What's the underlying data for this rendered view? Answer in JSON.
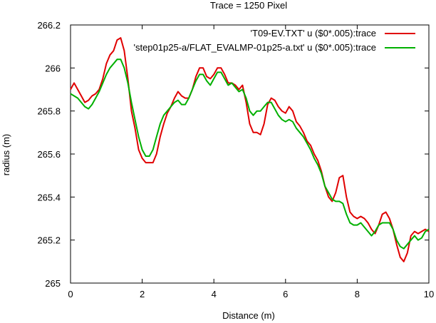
{
  "chart_data": {
    "type": "line",
    "title": "Trace = 1250 Pixel",
    "xlabel": "Distance (m)",
    "ylabel": "radius (m)",
    "xlim": [
      0,
      10
    ],
    "ylim": [
      265,
      266.2
    ],
    "x_ticks": [
      0,
      2,
      4,
      6,
      8,
      10
    ],
    "x_tick_labels": [
      "0",
      "2",
      "4",
      "6",
      "8",
      "10"
    ],
    "y_ticks": [
      265,
      265.2,
      265.4,
      265.6,
      265.8,
      266,
      266.2
    ],
    "y_tick_labels": [
      "265",
      "265.2",
      "265.4",
      "265.6",
      "265.8",
      "266",
      "266.2"
    ],
    "grid": false,
    "legend_position": "top-right",
    "series": [
      {
        "name": "'T09-EV.TXT' u ($0*.005):trace",
        "color": "#e00000",
        "x": [
          0,
          0.1,
          0.2,
          0.3,
          0.4,
          0.5,
          0.6,
          0.7,
          0.8,
          0.9,
          1.0,
          1.1,
          1.2,
          1.3,
          1.4,
          1.5,
          1.6,
          1.7,
          1.8,
          1.9,
          2.0,
          2.1,
          2.2,
          2.3,
          2.4,
          2.5,
          2.6,
          2.7,
          2.8,
          2.9,
          3.0,
          3.1,
          3.2,
          3.3,
          3.4,
          3.5,
          3.6,
          3.7,
          3.8,
          3.9,
          4.0,
          4.1,
          4.2,
          4.3,
          4.4,
          4.5,
          4.6,
          4.7,
          4.8,
          4.9,
          5.0,
          5.1,
          5.2,
          5.3,
          5.4,
          5.5,
          5.6,
          5.7,
          5.8,
          5.9,
          6.0,
          6.1,
          6.2,
          6.3,
          6.4,
          6.5,
          6.6,
          6.7,
          6.8,
          6.9,
          7.0,
          7.1,
          7.2,
          7.3,
          7.4,
          7.5,
          7.6,
          7.7,
          7.8,
          7.9,
          8.0,
          8.1,
          8.2,
          8.3,
          8.4,
          8.5,
          8.6,
          8.7,
          8.8,
          8.9,
          9.0,
          9.1,
          9.2,
          9.3,
          9.4,
          9.5,
          9.6,
          9.7,
          9.8,
          9.9,
          10.0
        ],
        "y": [
          265.9,
          265.93,
          265.9,
          265.87,
          265.84,
          265.85,
          265.87,
          265.88,
          265.9,
          265.95,
          266.02,
          266.06,
          266.08,
          266.13,
          266.14,
          266.08,
          265.95,
          265.8,
          265.72,
          265.62,
          265.58,
          265.56,
          265.56,
          265.56,
          265.6,
          265.68,
          265.74,
          265.79,
          265.82,
          265.86,
          265.89,
          265.87,
          265.86,
          265.86,
          265.9,
          265.96,
          266.0,
          266.0,
          265.96,
          265.95,
          265.97,
          266.0,
          266.0,
          265.97,
          265.93,
          265.93,
          265.92,
          265.9,
          265.92,
          265.84,
          265.74,
          265.7,
          265.7,
          265.69,
          265.74,
          265.83,
          265.86,
          265.85,
          265.82,
          265.8,
          265.79,
          265.82,
          265.8,
          265.75,
          265.73,
          265.7,
          265.66,
          265.64,
          265.6,
          265.57,
          265.52,
          265.45,
          265.4,
          265.38,
          265.42,
          265.49,
          265.5,
          265.4,
          265.33,
          265.31,
          265.3,
          265.31,
          265.3,
          265.28,
          265.25,
          265.23,
          265.27,
          265.32,
          265.33,
          265.3,
          265.25,
          265.18,
          265.12,
          265.1,
          265.14,
          265.22,
          265.24,
          265.23,
          265.24,
          265.25,
          265.24
        ]
      },
      {
        "name": "'step01p25-a/FLAT_EVALMP-01p25-a.txt' u ($0*.005):trace",
        "color": "#00b000",
        "x": [
          0,
          0.1,
          0.2,
          0.3,
          0.4,
          0.5,
          0.6,
          0.7,
          0.8,
          0.9,
          1.0,
          1.1,
          1.2,
          1.3,
          1.4,
          1.5,
          1.6,
          1.7,
          1.8,
          1.9,
          2.0,
          2.1,
          2.2,
          2.3,
          2.4,
          2.5,
          2.6,
          2.7,
          2.8,
          2.9,
          3.0,
          3.1,
          3.2,
          3.3,
          3.4,
          3.5,
          3.6,
          3.7,
          3.8,
          3.9,
          4.0,
          4.1,
          4.2,
          4.3,
          4.4,
          4.5,
          4.6,
          4.7,
          4.8,
          4.9,
          5.0,
          5.1,
          5.2,
          5.3,
          5.4,
          5.5,
          5.6,
          5.7,
          5.8,
          5.9,
          6.0,
          6.1,
          6.2,
          6.3,
          6.4,
          6.5,
          6.6,
          6.7,
          6.8,
          6.9,
          7.0,
          7.1,
          7.2,
          7.3,
          7.4,
          7.5,
          7.6,
          7.7,
          7.8,
          7.9,
          8.0,
          8.1,
          8.2,
          8.3,
          8.4,
          8.5,
          8.6,
          8.7,
          8.8,
          8.9,
          9.0,
          9.1,
          9.2,
          9.3,
          9.4,
          9.5,
          9.6,
          9.7,
          9.8,
          9.9,
          10.0
        ],
        "y": [
          265.88,
          265.87,
          265.86,
          265.84,
          265.82,
          265.81,
          265.83,
          265.86,
          265.89,
          265.93,
          265.97,
          266.0,
          266.02,
          266.04,
          266.04,
          266.0,
          265.93,
          265.84,
          265.76,
          265.68,
          265.62,
          265.59,
          265.59,
          265.62,
          265.68,
          265.74,
          265.78,
          265.8,
          265.82,
          265.84,
          265.85,
          265.83,
          265.83,
          265.86,
          265.9,
          265.94,
          265.97,
          265.97,
          265.94,
          265.92,
          265.95,
          265.98,
          265.98,
          265.95,
          265.92,
          265.93,
          265.91,
          265.89,
          265.9,
          265.86,
          265.8,
          265.78,
          265.8,
          265.8,
          265.82,
          265.84,
          265.84,
          265.81,
          265.78,
          265.76,
          265.75,
          265.76,
          265.75,
          265.72,
          265.7,
          265.68,
          265.65,
          265.62,
          265.58,
          265.55,
          265.51,
          265.45,
          265.42,
          265.39,
          265.38,
          265.38,
          265.37,
          265.32,
          265.28,
          265.27,
          265.27,
          265.28,
          265.26,
          265.24,
          265.22,
          265.24,
          265.27,
          265.28,
          265.28,
          265.28,
          265.25,
          265.2,
          265.17,
          265.16,
          265.18,
          265.2,
          265.22,
          265.2,
          265.21,
          265.24,
          265.25
        ]
      }
    ]
  }
}
